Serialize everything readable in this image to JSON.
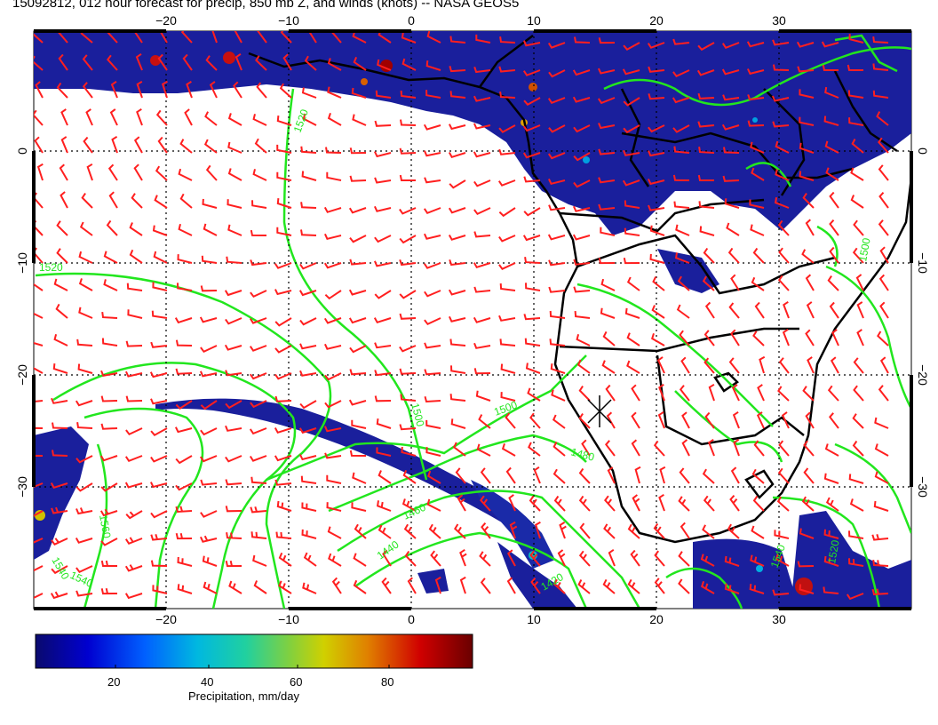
{
  "title": "15092812, 012 hour forecast for precip, 850 mb Z, and winds (knots) -- NASA GEOS5",
  "map": {
    "lon_ticks": [
      "−20",
      "−10",
      "0",
      "10",
      "20",
      "30"
    ],
    "lat_ticks": [
      "0",
      "−10",
      "−20",
      "−30"
    ],
    "contour_labels": [
      "1520",
      "1500",
      "1520",
      "1500",
      "1480",
      "1460",
      "1440",
      "1420",
      "1540",
      "1540",
      "1560",
      "1540",
      "1520",
      "1500"
    ],
    "colors": {
      "precip_blue": "#1a1f9c",
      "contour_green": "#22e61e",
      "barb_red": "#ff1f1f",
      "coast_black": "#000000",
      "grid_dotted": "#000000"
    }
  },
  "colorbar": {
    "ticks": [
      "20",
      "40",
      "60",
      "80"
    ],
    "label": "Precipitation, mm/day",
    "gradient": [
      "#0a0a6e",
      "#0000d0",
      "#0060ff",
      "#00b8e0",
      "#20d0a0",
      "#80d040",
      "#d0d000",
      "#e08000",
      "#d00000",
      "#6a0000"
    ]
  }
}
